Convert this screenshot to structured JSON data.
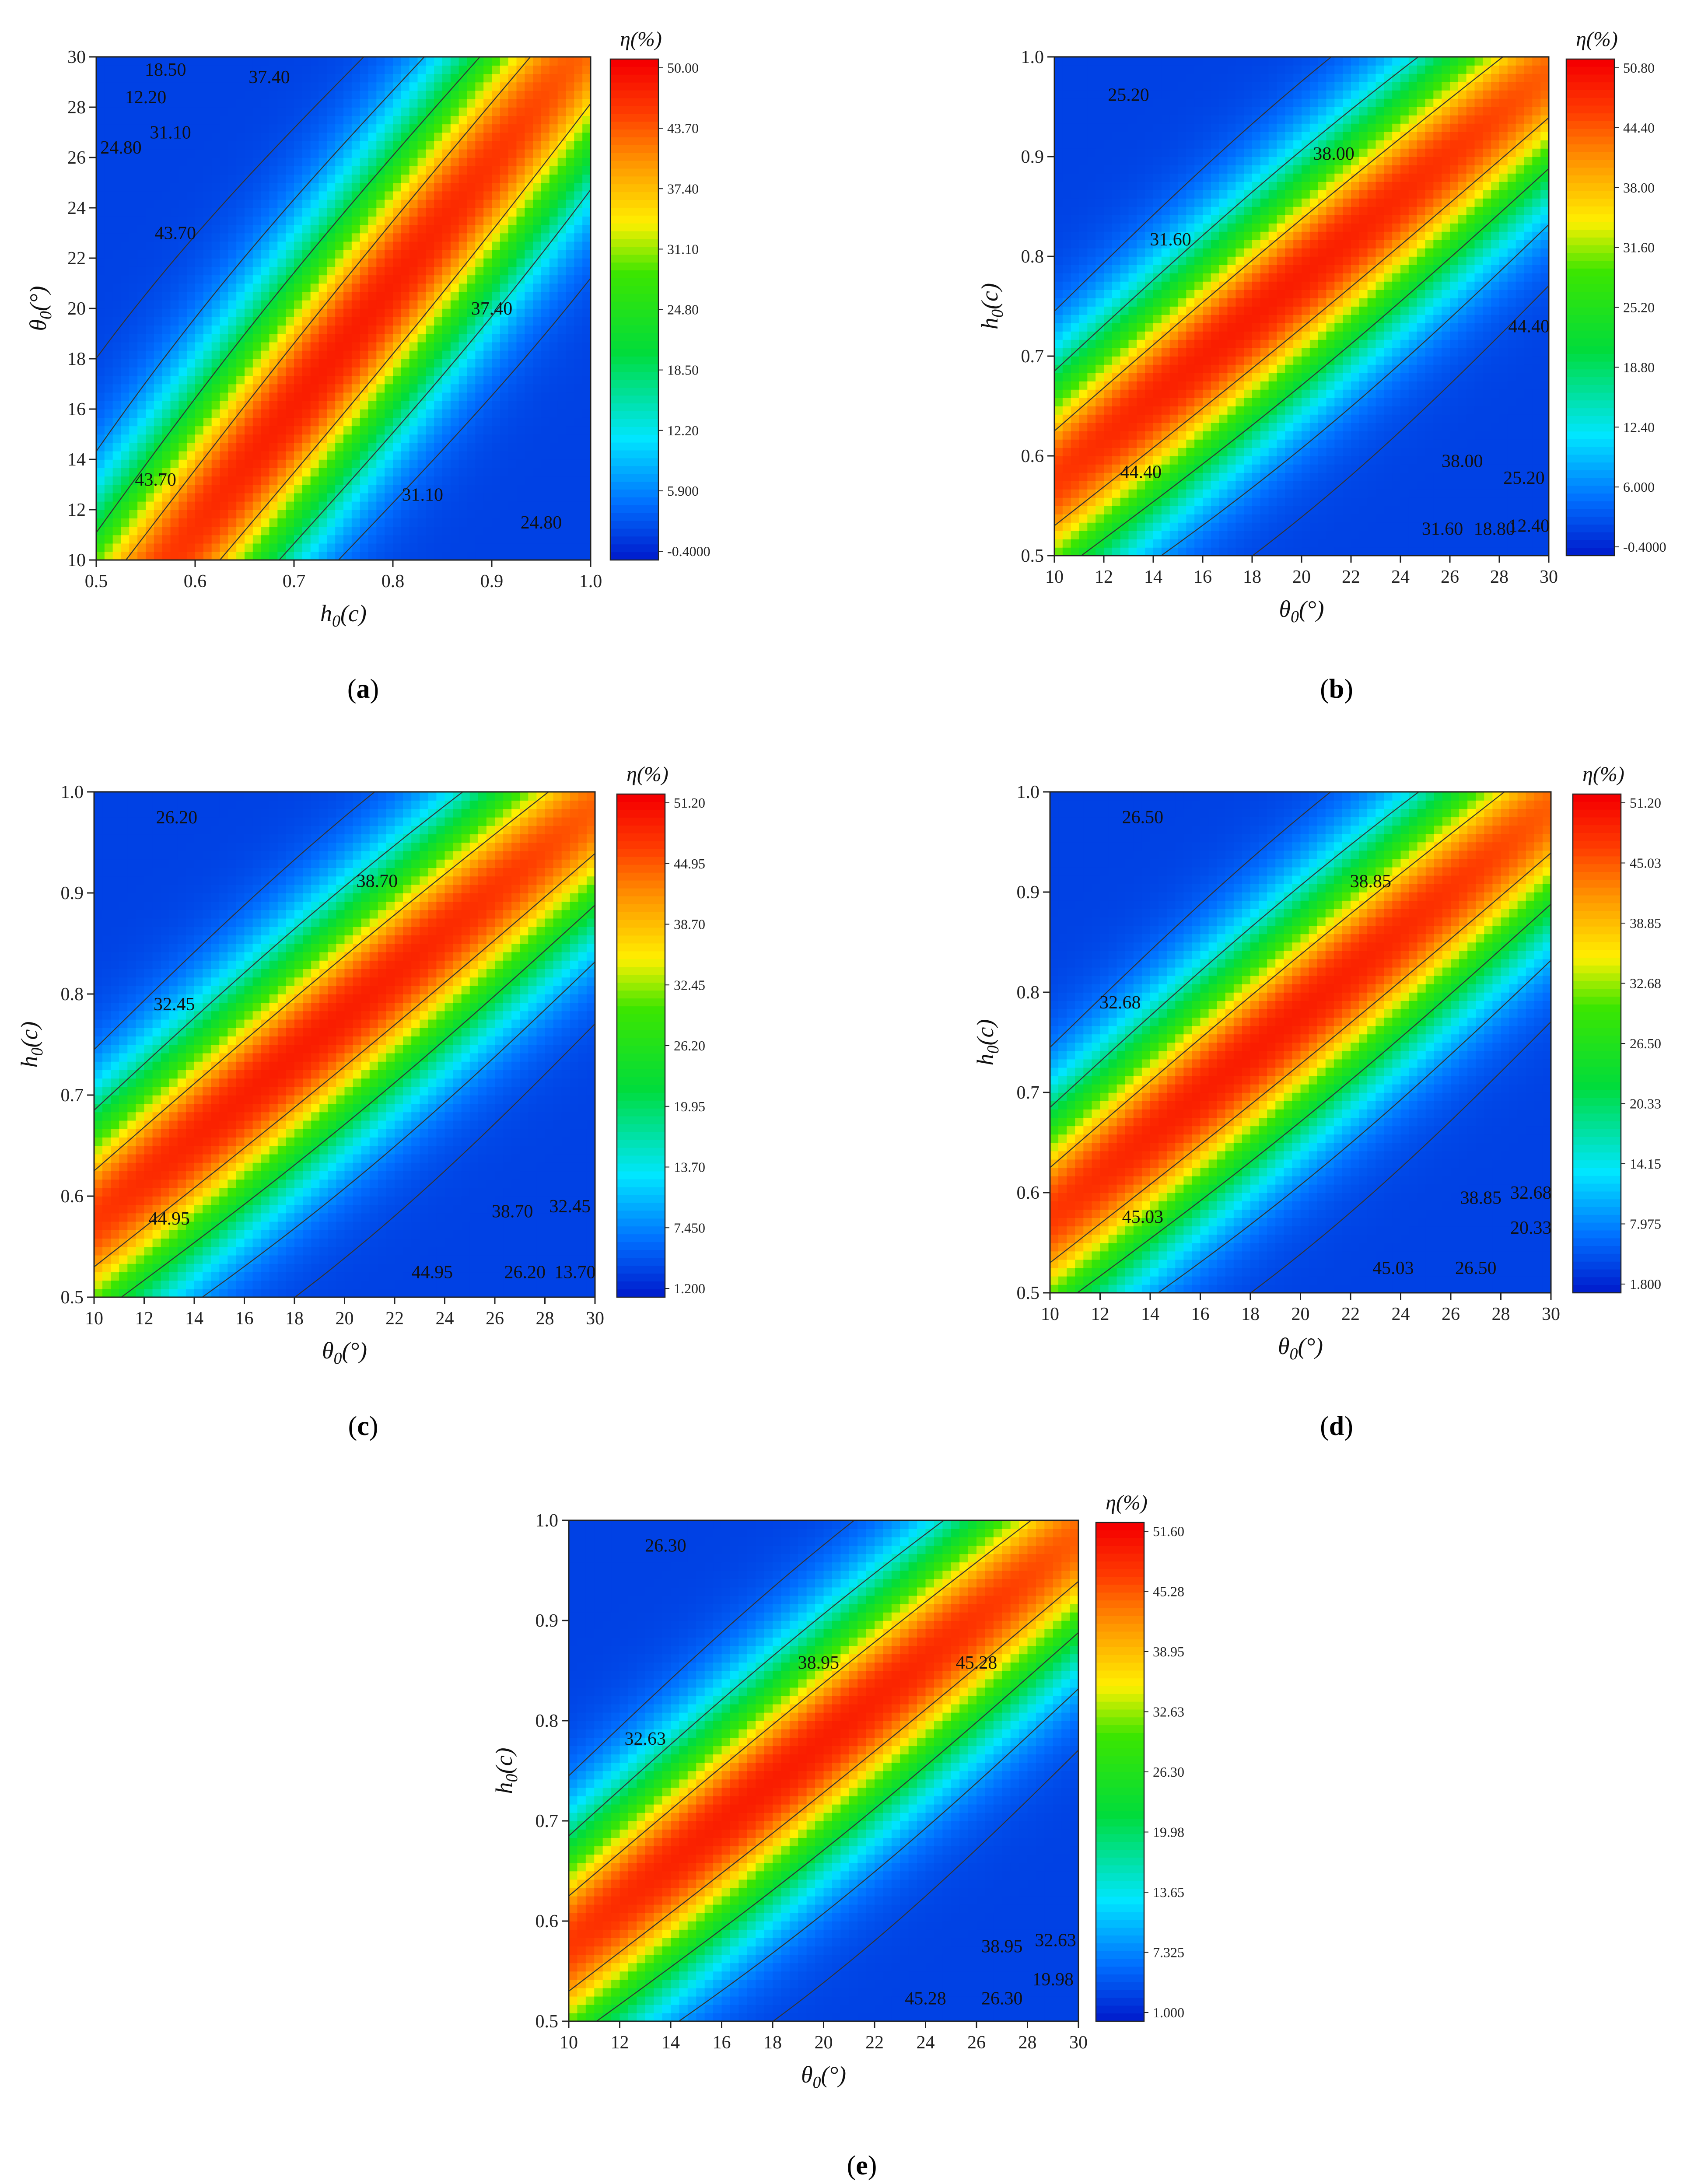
{
  "chart_data": [
    {
      "type": "heatmap",
      "panel_label": "a",
      "x_axis": {
        "label": "h0(c)",
        "label_main": "h",
        "label_sub": "0",
        "label_tail": "(c)",
        "range": [
          0.5,
          1.0
        ],
        "ticks": [
          "0.5",
          "0.6",
          "0.7",
          "0.8",
          "0.9",
          "1.0"
        ]
      },
      "y_axis": {
        "label": "θ0(°)",
        "label_main": "θ",
        "label_sub": "0",
        "label_tail": "(°)",
        "range": [
          10,
          30
        ],
        "ticks": [
          "10",
          "12",
          "14",
          "16",
          "18",
          "20",
          "22",
          "24",
          "26",
          "28",
          "30"
        ]
      },
      "colorbar": {
        "title": "η(%)",
        "ticks": [
          "50.00",
          "43.70",
          "37.40",
          "31.10",
          "24.80",
          "18.50",
          "12.20",
          "5.900",
          "-0.4000"
        ],
        "min": -0.4,
        "max": 50.0
      },
      "contour_labels": [
        {
          "text": "12.20",
          "x": 0.55,
          "y": 28.4
        },
        {
          "text": "18.50",
          "x": 0.57,
          "y": 29.5
        },
        {
          "text": "37.40",
          "x": 0.675,
          "y": 29.2
        },
        {
          "text": "24.80",
          "x": 0.525,
          "y": 26.4
        },
        {
          "text": "31.10",
          "x": 0.575,
          "y": 27.0
        },
        {
          "text": "43.70",
          "x": 0.58,
          "y": 23.0
        },
        {
          "text": "37.40",
          "x": 0.9,
          "y": 20.0
        },
        {
          "text": "43.70",
          "x": 0.56,
          "y": 13.2
        },
        {
          "text": "31.10",
          "x": 0.83,
          "y": 12.6
        },
        {
          "text": "24.80",
          "x": 0.95,
          "y": 11.5
        }
      ]
    },
    {
      "type": "heatmap",
      "panel_label": "b",
      "x_axis": {
        "label": "θ0(°)",
        "label_main": "θ",
        "label_sub": "0",
        "label_tail": "(°)",
        "range": [
          10,
          30
        ],
        "ticks": [
          "10",
          "12",
          "14",
          "16",
          "18",
          "20",
          "22",
          "24",
          "26",
          "28",
          "30"
        ]
      },
      "y_axis": {
        "label": "h0(c)",
        "label_main": "h",
        "label_sub": "0",
        "label_tail": "(c)",
        "range": [
          0.5,
          1.0
        ],
        "ticks": [
          "0.5",
          "0.6",
          "0.7",
          "0.8",
          "0.9",
          "1.0"
        ]
      },
      "colorbar": {
        "title": "η(%)",
        "ticks": [
          "50.80",
          "44.40",
          "38.00",
          "31.60",
          "25.20",
          "18.80",
          "12.40",
          "6.000",
          "-0.4000"
        ],
        "min": -0.4,
        "max": 50.8
      },
      "contour_labels": [
        {
          "text": "25.20",
          "x": 13.0,
          "y": 0.962
        },
        {
          "text": "38.00",
          "x": 21.3,
          "y": 0.903
        },
        {
          "text": "31.60",
          "x": 14.7,
          "y": 0.817
        },
        {
          "text": "44.40",
          "x": 29.2,
          "y": 0.73
        },
        {
          "text": "44.40",
          "x": 13.5,
          "y": 0.584
        },
        {
          "text": "38.00",
          "x": 26.5,
          "y": 0.595
        },
        {
          "text": "25.20",
          "x": 29.0,
          "y": 0.578
        },
        {
          "text": "31.60",
          "x": 25.7,
          "y": 0.527
        },
        {
          "text": "18.80",
          "x": 27.8,
          "y": 0.527
        },
        {
          "text": "12.40",
          "x": 29.2,
          "y": 0.53
        }
      ]
    },
    {
      "type": "heatmap",
      "panel_label": "c",
      "x_axis": {
        "label": "θ0(°)",
        "label_main": "θ",
        "label_sub": "0",
        "label_tail": "(°)",
        "range": [
          10,
          30
        ],
        "ticks": [
          "10",
          "12",
          "14",
          "16",
          "18",
          "20",
          "22",
          "24",
          "26",
          "28",
          "30"
        ]
      },
      "y_axis": {
        "label": "h0(c)",
        "label_main": "h",
        "label_sub": "0",
        "label_tail": "(c)",
        "range": [
          0.5,
          1.0
        ],
        "ticks": [
          "0.5",
          "0.6",
          "0.7",
          "0.8",
          "0.9",
          "1.0"
        ]
      },
      "colorbar": {
        "title": "η(%)",
        "ticks": [
          "51.20",
          "44.95",
          "38.70",
          "32.45",
          "26.20",
          "19.95",
          "13.70",
          "7.450",
          "1.200"
        ],
        "min": 1.2,
        "max": 51.2
      },
      "contour_labels": [
        {
          "text": "26.20",
          "x": 13.3,
          "y": 0.975
        },
        {
          "text": "38.70",
          "x": 21.3,
          "y": 0.912
        },
        {
          "text": "32.45",
          "x": 13.2,
          "y": 0.79
        },
        {
          "text": "44.95",
          "x": 13.0,
          "y": 0.578
        },
        {
          "text": "38.70",
          "x": 26.7,
          "y": 0.585
        },
        {
          "text": "32.45",
          "x": 29.0,
          "y": 0.59
        },
        {
          "text": "44.95",
          "x": 23.5,
          "y": 0.525
        },
        {
          "text": "26.20",
          "x": 27.2,
          "y": 0.525
        },
        {
          "text": "13.70",
          "x": 29.2,
          "y": 0.525
        }
      ]
    },
    {
      "type": "heatmap",
      "panel_label": "d",
      "x_axis": {
        "label": "θ0(°)",
        "label_main": "θ",
        "label_sub": "0",
        "label_tail": "(°)",
        "range": [
          10,
          30
        ],
        "ticks": [
          "10",
          "12",
          "14",
          "16",
          "18",
          "20",
          "22",
          "24",
          "26",
          "28",
          "30"
        ]
      },
      "y_axis": {
        "label": "h0(c)",
        "label_main": "h",
        "label_sub": "0",
        "label_tail": "(c)",
        "range": [
          0.5,
          1.0
        ],
        "ticks": [
          "0.5",
          "0.6",
          "0.7",
          "0.8",
          "0.9",
          "1.0"
        ]
      },
      "colorbar": {
        "title": "η(%)",
        "ticks": [
          "51.20",
          "45.03",
          "38.85",
          "32.68",
          "26.50",
          "20.33",
          "14.15",
          "7.975",
          "1.800"
        ],
        "min": 1.8,
        "max": 51.2
      },
      "contour_labels": [
        {
          "text": "26.50",
          "x": 13.7,
          "y": 0.975
        },
        {
          "text": "38.85",
          "x": 22.8,
          "y": 0.911
        },
        {
          "text": "32.68",
          "x": 12.8,
          "y": 0.79
        },
        {
          "text": "45.03",
          "x": 13.7,
          "y": 0.576
        },
        {
          "text": "38.85",
          "x": 27.2,
          "y": 0.595
        },
        {
          "text": "32.68",
          "x": 29.2,
          "y": 0.6
        },
        {
          "text": "20.33",
          "x": 29.2,
          "y": 0.565
        },
        {
          "text": "45.03",
          "x": 23.7,
          "y": 0.525
        },
        {
          "text": "26.50",
          "x": 27.0,
          "y": 0.525
        }
      ]
    },
    {
      "type": "heatmap",
      "panel_label": "e",
      "x_axis": {
        "label": "θ0(°)",
        "label_main": "θ",
        "label_sub": "0",
        "label_tail": "(°)",
        "range": [
          10,
          30
        ],
        "ticks": [
          "10",
          "12",
          "14",
          "16",
          "18",
          "20",
          "22",
          "24",
          "26",
          "28",
          "30"
        ]
      },
      "y_axis": {
        "label": "h0(c)",
        "label_main": "h",
        "label_sub": "0",
        "label_tail": "(c)",
        "range": [
          0.5,
          1.0
        ],
        "ticks": [
          "0.5",
          "0.6",
          "0.7",
          "0.8",
          "0.9",
          "1.0"
        ]
      },
      "colorbar": {
        "title": "η(%)",
        "ticks": [
          "51.60",
          "45.28",
          "38.95",
          "32.63",
          "26.30",
          "19.98",
          "13.65",
          "7.325",
          "1.000"
        ],
        "min": 1.0,
        "max": 51.6
      },
      "contour_labels": [
        {
          "text": "26.30",
          "x": 13.8,
          "y": 0.975
        },
        {
          "text": "38.95",
          "x": 19.8,
          "y": 0.858
        },
        {
          "text": "45.28",
          "x": 26.0,
          "y": 0.858
        },
        {
          "text": "32.63",
          "x": 13.0,
          "y": 0.782
        },
        {
          "text": "38.95",
          "x": 27.0,
          "y": 0.575
        },
        {
          "text": "32.63",
          "x": 29.1,
          "y": 0.581
        },
        {
          "text": "19.98",
          "x": 29.0,
          "y": 0.542
        },
        {
          "text": "45.28",
          "x": 24.0,
          "y": 0.523
        },
        {
          "text": "26.30",
          "x": 27.0,
          "y": 0.523
        }
      ]
    }
  ]
}
